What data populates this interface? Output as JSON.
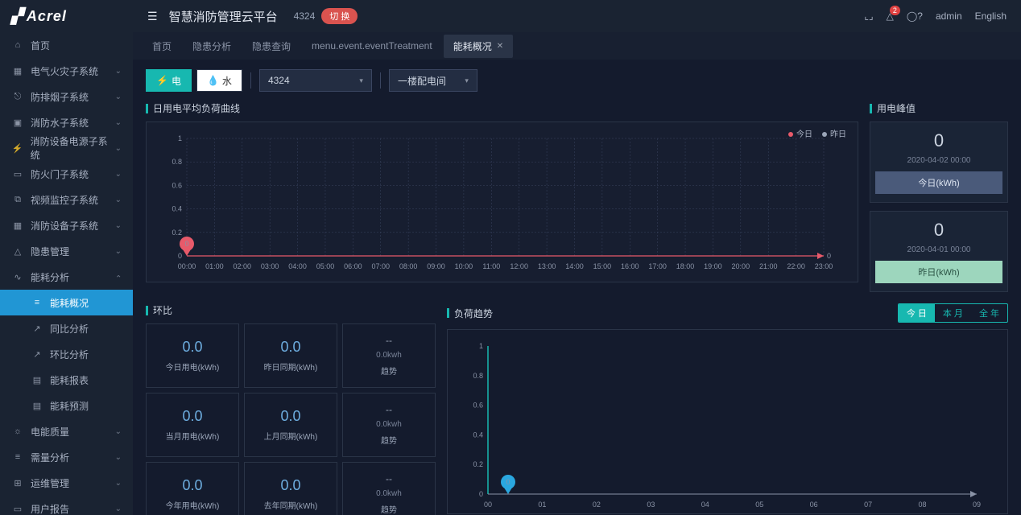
{
  "brand": "Acrel",
  "header": {
    "title": "智慧消防管理云平台",
    "project_code": "4324",
    "switch_label": "切 换",
    "notif_count": "2",
    "user": "admin",
    "lang": "English"
  },
  "sidebar": [
    {
      "icon": "⌂",
      "label": "首页",
      "expandable": false
    },
    {
      "icon": "▦",
      "label": "电气火灾子系统",
      "expandable": true
    },
    {
      "icon": "⎋",
      "label": "防排烟子系统",
      "expandable": true
    },
    {
      "icon": "▣",
      "label": "消防水子系统",
      "expandable": true
    },
    {
      "icon": "⚡",
      "label": "消防设备电源子系统",
      "expandable": true
    },
    {
      "icon": "▭",
      "label": "防火门子系统",
      "expandable": true
    },
    {
      "icon": "⧉",
      "label": "视频监控子系统",
      "expandable": true
    },
    {
      "icon": "▦",
      "label": "消防设备子系统",
      "expandable": true
    },
    {
      "icon": "△",
      "label": "隐患管理",
      "expandable": true
    },
    {
      "icon": "∿",
      "label": "能耗分析",
      "expandable": true,
      "open": true,
      "children": [
        {
          "icon": "≡",
          "label": "能耗概况",
          "active": true
        },
        {
          "icon": "↗",
          "label": "同比分析"
        },
        {
          "icon": "↗",
          "label": "环比分析"
        },
        {
          "icon": "▤",
          "label": "能耗报表"
        },
        {
          "icon": "▤",
          "label": "能耗预测"
        }
      ]
    },
    {
      "icon": "☼",
      "label": "电能质量",
      "expandable": true
    },
    {
      "icon": "≡",
      "label": "需量分析",
      "expandable": true
    },
    {
      "icon": "⊞",
      "label": "运维管理",
      "expandable": true
    },
    {
      "icon": "▭",
      "label": "用户报告",
      "expandable": true
    }
  ],
  "tabs": [
    {
      "label": "首页",
      "closable": false
    },
    {
      "label": "隐患分析",
      "closable": false
    },
    {
      "label": "隐患查询",
      "closable": false
    },
    {
      "label": "menu.event.eventTreatment",
      "closable": false
    },
    {
      "label": "能耗概况",
      "closable": true,
      "active": true
    }
  ],
  "filters": {
    "electric_label": "电",
    "water_label": "水",
    "project": "4324",
    "room": "一楼配电间"
  },
  "daily_chart": {
    "title": "日用电平均负荷曲线",
    "legend": {
      "today": "今日",
      "yesterday": "昨日"
    },
    "colors": {
      "today": "#e85a6a",
      "yesterday": "#9aa5b8",
      "grid": "#3a4560",
      "axis": "#8a93a6"
    },
    "y_ticks": [
      "0",
      "0.2",
      "0.4",
      "0.6",
      "0.8",
      "1"
    ],
    "x_ticks": [
      "00:00",
      "01:00",
      "02:00",
      "03:00",
      "04:00",
      "05:00",
      "06:00",
      "07:00",
      "08:00",
      "09:00",
      "10:00",
      "11:00",
      "12:00",
      "13:00",
      "14:00",
      "15:00",
      "16:00",
      "17:00",
      "18:00",
      "19:00",
      "20:00",
      "21:00",
      "22:00",
      "23:00"
    ],
    "end_value": "0",
    "pin_value": "0"
  },
  "peak": {
    "title": "用电峰值",
    "today": {
      "value": "0",
      "time": "2020-04-02 00:00",
      "foot": "今日(kWh)"
    },
    "yesterday": {
      "value": "0",
      "time": "2020-04-01 00:00",
      "foot": "昨日(kWh)"
    }
  },
  "hb": {
    "title": "环比",
    "cards": [
      {
        "value": "0.0",
        "label": "今日用电(kWh)"
      },
      {
        "value": "0.0",
        "label": "昨日同期(kWh)"
      },
      {
        "trend": true,
        "dash": "--",
        "sub": "0.0kwh",
        "label": "趋势"
      },
      {
        "value": "0.0",
        "label": "当月用电(kWh)"
      },
      {
        "value": "0.0",
        "label": "上月同期(kWh)"
      },
      {
        "trend": true,
        "dash": "--",
        "sub": "0.0kwh",
        "label": "趋势"
      },
      {
        "value": "0.0",
        "label": "今年用电(kWh)"
      },
      {
        "value": "0.0",
        "label": "去年同期(kWh)"
      },
      {
        "trend": true,
        "dash": "--",
        "sub": "0.0kwh",
        "label": "趋势"
      }
    ]
  },
  "trend": {
    "title": "负荷趋势",
    "tabs": [
      "今 日",
      "本 月",
      "全 年"
    ],
    "active_tab": 0,
    "y_ticks": [
      "0",
      "0.2",
      "0.4",
      "0.6",
      "0.8",
      "1"
    ],
    "x_ticks": [
      "00",
      "01",
      "02",
      "03",
      "04",
      "05",
      "06",
      "07",
      "08",
      "09"
    ],
    "pin_value": "0",
    "pin_color": "#2aa7df"
  }
}
